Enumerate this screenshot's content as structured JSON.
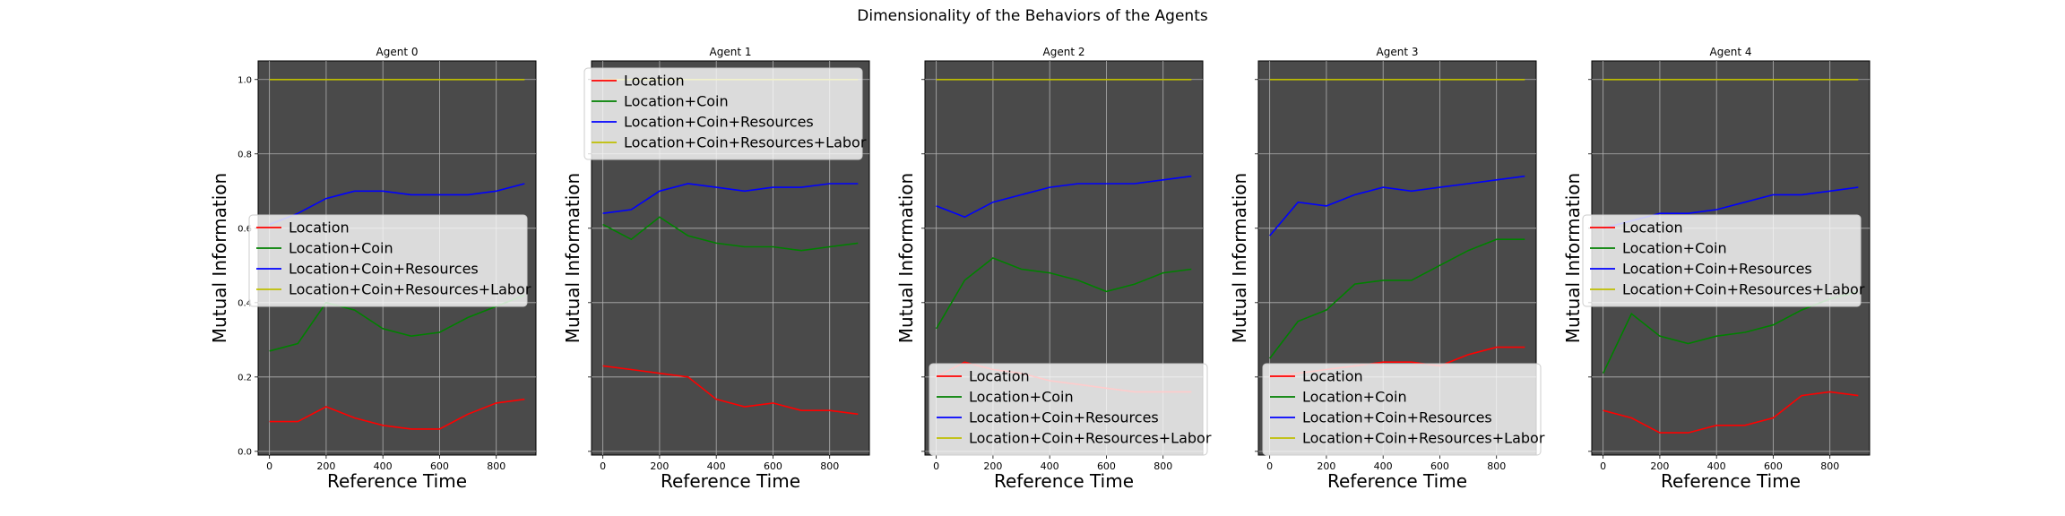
{
  "figure": {
    "title": "Dimensionality of the Behaviors of the Agents",
    "background": "#ffffff",
    "plot_background": "#4a4a4a"
  },
  "colors": {
    "Location": "#ff0000",
    "Location+Coin": "#008000",
    "Location+Coin+Resources": "#0000ff",
    "Location+Coin+Resources+Labor": "#bfbf00"
  },
  "chart_data": [
    {
      "type": "line",
      "title": "Agent 0",
      "xlabel": "Reference Time",
      "ylabel": "Mutual Information",
      "xlim": [
        -40,
        940
      ],
      "ylim": [
        -0.01,
        1.05
      ],
      "xticks": [
        0,
        200,
        400,
        600,
        800
      ],
      "yticks": [
        0.0,
        0.2,
        0.4,
        0.6,
        0.8,
        1.0
      ],
      "show_yticklabels": true,
      "grid": true,
      "legend_position": "center-left",
      "x": [
        0,
        100,
        200,
        300,
        400,
        500,
        600,
        700,
        800,
        900
      ],
      "series": [
        {
          "name": "Location",
          "values": [
            0.08,
            0.08,
            0.12,
            0.09,
            0.07,
            0.06,
            0.06,
            0.1,
            0.13,
            0.14
          ]
        },
        {
          "name": "Location+Coin",
          "values": [
            0.27,
            0.29,
            0.4,
            0.38,
            0.33,
            0.31,
            0.32,
            0.36,
            0.39,
            0.42
          ]
        },
        {
          "name": "Location+Coin+Resources",
          "values": [
            0.61,
            0.64,
            0.68,
            0.7,
            0.7,
            0.69,
            0.69,
            0.69,
            0.7,
            0.72
          ]
        },
        {
          "name": "Location+Coin+Resources+Labor",
          "values": [
            1.0,
            1.0,
            1.0,
            1.0,
            1.0,
            1.0,
            1.0,
            1.0,
            1.0,
            1.0
          ]
        }
      ]
    },
    {
      "type": "line",
      "title": "Agent 1",
      "xlabel": "Reference Time",
      "ylabel": "Mutual Information",
      "xlim": [
        -40,
        940
      ],
      "ylim": [
        -0.01,
        1.05
      ],
      "xticks": [
        0,
        200,
        400,
        600,
        800
      ],
      "yticks": [
        0.0,
        0.2,
        0.4,
        0.6,
        0.8,
        1.0
      ],
      "show_yticklabels": false,
      "grid": true,
      "legend_position": "top-left",
      "x": [
        0,
        100,
        200,
        300,
        400,
        500,
        600,
        700,
        800,
        900
      ],
      "series": [
        {
          "name": "Location",
          "values": [
            0.23,
            0.22,
            0.21,
            0.2,
            0.14,
            0.12,
            0.13,
            0.11,
            0.11,
            0.1
          ]
        },
        {
          "name": "Location+Coin",
          "values": [
            0.61,
            0.57,
            0.63,
            0.58,
            0.56,
            0.55,
            0.55,
            0.54,
            0.55,
            0.56
          ]
        },
        {
          "name": "Location+Coin+Resources",
          "values": [
            0.64,
            0.65,
            0.7,
            0.72,
            0.71,
            0.7,
            0.71,
            0.71,
            0.72,
            0.72
          ]
        },
        {
          "name": "Location+Coin+Resources+Labor",
          "values": [
            1.0,
            1.0,
            1.0,
            1.0,
            1.0,
            1.0,
            1.0,
            1.0,
            1.0,
            1.0
          ]
        }
      ]
    },
    {
      "type": "line",
      "title": "Agent 2",
      "xlabel": "Reference Time",
      "ylabel": "Mutual Information",
      "xlim": [
        -40,
        940
      ],
      "ylim": [
        -0.01,
        1.05
      ],
      "xticks": [
        0,
        200,
        400,
        600,
        800
      ],
      "yticks": [
        0.0,
        0.2,
        0.4,
        0.6,
        0.8,
        1.0
      ],
      "show_yticklabels": false,
      "grid": true,
      "legend_position": "bottom-right",
      "x": [
        0,
        100,
        200,
        300,
        400,
        500,
        600,
        700,
        800,
        900
      ],
      "series": [
        {
          "name": "Location",
          "values": [
            0.2,
            0.24,
            0.22,
            0.21,
            0.19,
            0.18,
            0.17,
            0.16,
            0.16,
            0.16
          ]
        },
        {
          "name": "Location+Coin",
          "values": [
            0.33,
            0.46,
            0.52,
            0.49,
            0.48,
            0.46,
            0.43,
            0.45,
            0.48,
            0.49
          ]
        },
        {
          "name": "Location+Coin+Resources",
          "values": [
            0.66,
            0.63,
            0.67,
            0.69,
            0.71,
            0.72,
            0.72,
            0.72,
            0.73,
            0.74
          ]
        },
        {
          "name": "Location+Coin+Resources+Labor",
          "values": [
            1.0,
            1.0,
            1.0,
            1.0,
            1.0,
            1.0,
            1.0,
            1.0,
            1.0,
            1.0
          ]
        }
      ]
    },
    {
      "type": "line",
      "title": "Agent 3",
      "xlabel": "Reference Time",
      "ylabel": "Mutual Information",
      "xlim": [
        -40,
        940
      ],
      "ylim": [
        -0.01,
        1.05
      ],
      "xticks": [
        0,
        200,
        400,
        600,
        800
      ],
      "yticks": [
        0.0,
        0.2,
        0.4,
        0.6,
        0.8,
        1.0
      ],
      "show_yticklabels": false,
      "grid": true,
      "legend_position": "bottom-left",
      "x": [
        0,
        100,
        200,
        300,
        400,
        500,
        600,
        700,
        800,
        900
      ],
      "series": [
        {
          "name": "Location",
          "values": [
            0.2,
            0.21,
            0.22,
            0.23,
            0.24,
            0.24,
            0.23,
            0.26,
            0.28,
            0.28
          ]
        },
        {
          "name": "Location+Coin",
          "values": [
            0.25,
            0.35,
            0.38,
            0.45,
            0.46,
            0.46,
            0.5,
            0.54,
            0.57,
            0.57
          ]
        },
        {
          "name": "Location+Coin+Resources",
          "values": [
            0.58,
            0.67,
            0.66,
            0.69,
            0.71,
            0.7,
            0.71,
            0.72,
            0.73,
            0.74
          ]
        },
        {
          "name": "Location+Coin+Resources+Labor",
          "values": [
            1.0,
            1.0,
            1.0,
            1.0,
            1.0,
            1.0,
            1.0,
            1.0,
            1.0,
            1.0
          ]
        }
      ]
    },
    {
      "type": "line",
      "title": "Agent 4",
      "xlabel": "Reference Time",
      "ylabel": "Mutual Information",
      "xlim": [
        -40,
        940
      ],
      "ylim": [
        -0.01,
        1.05
      ],
      "xticks": [
        0,
        200,
        400,
        600,
        800
      ],
      "yticks": [
        0.0,
        0.2,
        0.4,
        0.6,
        0.8,
        1.0
      ],
      "show_yticklabels": false,
      "grid": true,
      "legend_position": "center-left",
      "x": [
        0,
        100,
        200,
        300,
        400,
        500,
        600,
        700,
        800,
        900
      ],
      "series": [
        {
          "name": "Location",
          "values": [
            0.11,
            0.09,
            0.05,
            0.05,
            0.07,
            0.07,
            0.09,
            0.15,
            0.16,
            0.15
          ]
        },
        {
          "name": "Location+Coin",
          "values": [
            0.21,
            0.37,
            0.31,
            0.29,
            0.31,
            0.32,
            0.34,
            0.38,
            0.41,
            0.43
          ]
        },
        {
          "name": "Location+Coin+Resources",
          "values": [
            0.6,
            0.62,
            0.64,
            0.64,
            0.65,
            0.67,
            0.69,
            0.69,
            0.7,
            0.71
          ]
        },
        {
          "name": "Location+Coin+Resources+Labor",
          "values": [
            1.0,
            1.0,
            1.0,
            1.0,
            1.0,
            1.0,
            1.0,
            1.0,
            1.0,
            1.0
          ]
        }
      ]
    }
  ]
}
